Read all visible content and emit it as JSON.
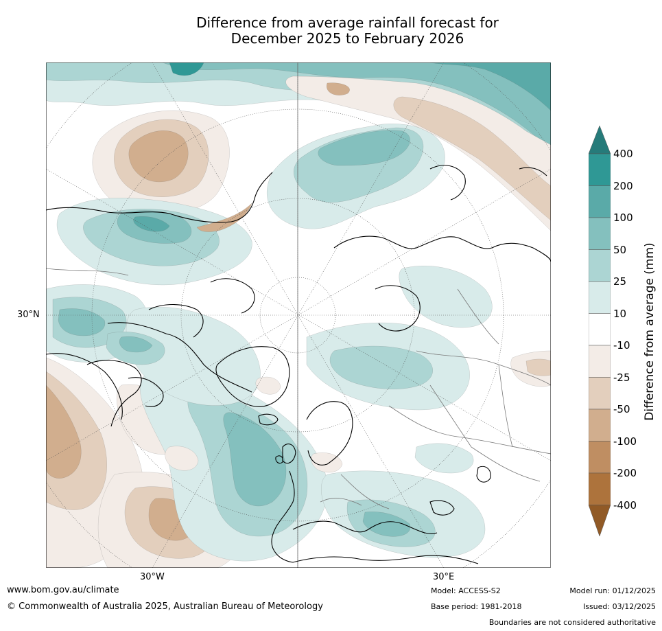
{
  "title_line1": "Difference from average rainfall forecast for",
  "title_line2": "December 2025 to February 2026",
  "map": {
    "projection": "north polar stereographic",
    "lon_labels": [
      "30°W",
      "30°E"
    ],
    "lat_label": "30°N"
  },
  "colorbar": {
    "title": "Difference from average (mm)",
    "levels": [
      "400",
      "200",
      "100",
      "50",
      "25",
      "10",
      "-10",
      "-25",
      "-50",
      "-100",
      "-200",
      "-400"
    ],
    "colors": {
      "gt400": "#267b7a",
      "200_400": "#2f9895",
      "100_200": "#5aaaa8",
      "50_100": "#84c0be",
      "25_50": "#acd5d3",
      "10_25": "#d8ebea",
      "neutral": "#ffffff",
      "m25_m10": "#f3ece7",
      "m50_m25": "#e3cfbd",
      "m100_m50": "#d1ae8e",
      "m200_m100": "#bf8e62",
      "m400_m200": "#ad733c",
      "lt_m400": "#915a26"
    }
  },
  "footer": {
    "url": "www.bom.gov.au/climate",
    "copyright": "© Commonwealth of Australia 2025, Australian Bureau of Meteorology",
    "model": "Model: ACCESS-S2",
    "base_period": "Base period: 1981-2018",
    "model_run": "Model run: 01/12/2025",
    "issued": "Issued: 03/12/2025",
    "disclaimer": "Boundaries are not considered authoritative"
  }
}
